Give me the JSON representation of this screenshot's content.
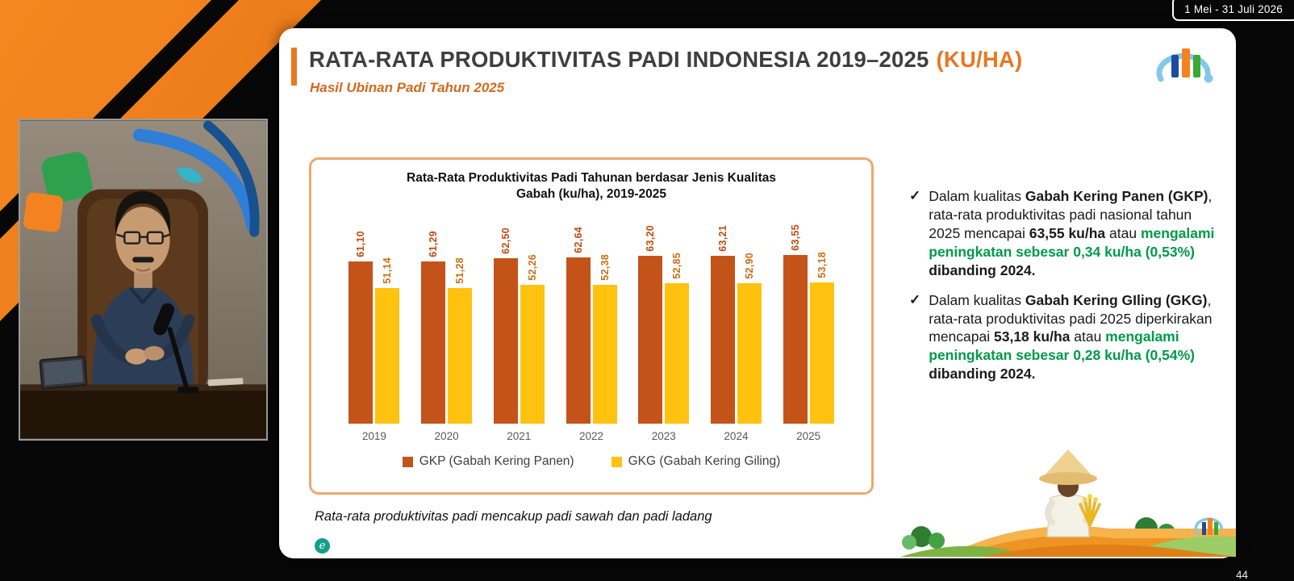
{
  "header": {
    "date_range": "1 Mei - 31 Juli 2026",
    "page_number": "44"
  },
  "slide": {
    "title": "RATA-RATA PRODUKTIVITAS PADI INDONESIA 2019–2025",
    "title_accent": "(KU/HA)",
    "subtitle": "Hasil Ubinan Padi Tahun 2025",
    "footnote": "Rata-rata produktivitas padi mencakup padi sawah dan padi ladang",
    "watermark_glyph": "e",
    "accent_color": "#E87722"
  },
  "chart_data": {
    "type": "bar",
    "title": "Rata-Rata Produktivitas Padi Tahunan berdasar Jenis Kualitas Gabah (ku/ha), 2019-2025",
    "categories": [
      "2019",
      "2020",
      "2021",
      "2022",
      "2023",
      "2024",
      "2025"
    ],
    "series": [
      {
        "name": "GKP (Gabah Kering Panen)",
        "color": "#C4531A",
        "label_color": "#BE4B12",
        "values": [
          61.1,
          61.29,
          62.5,
          62.64,
          63.2,
          63.21,
          63.55
        ],
        "labels": [
          "61,10",
          "61,29",
          "62,50",
          "62,64",
          "63,20",
          "63,21",
          "63,55"
        ]
      },
      {
        "name": "GKG (Gabah Kering Giling)",
        "color": "#FFC20E",
        "label_color": "#C96F15",
        "values": [
          51.14,
          51.28,
          52.26,
          52.38,
          52.85,
          52.9,
          53.18
        ],
        "labels": [
          "51,14",
          "51,28",
          "52,26",
          "52,38",
          "52,85",
          "52,90",
          "53,18"
        ]
      }
    ],
    "ylim": [
      0,
      70
    ],
    "grid": false,
    "legend_position": "bottom",
    "value_labels": "rotated-90"
  },
  "insights": {
    "green_color": "#009A49",
    "check_glyph": "✓",
    "bullets": [
      {
        "segments": [
          {
            "text": "Dalam kualitas "
          },
          {
            "text": "Gabah Kering Panen (GKP)",
            "bold": true
          },
          {
            "text": ", rata-rata produktivitas padi nasional tahun 2025 mencapai "
          },
          {
            "text": "63,55 ku/ha",
            "bold": true
          },
          {
            "text": " atau "
          },
          {
            "text": "mengalami peningkatan sebesar 0,34 ku/ha (0,53%)",
            "bold": true,
            "green": true
          },
          {
            "text": " dibanding 2024.",
            "bold": true
          }
        ]
      },
      {
        "segments": [
          {
            "text": "Dalam kualitas "
          },
          {
            "text": "Gabah Kering GIling (GKG)",
            "bold": true
          },
          {
            "text": ", rata-rata produktivitas padi 2025 diperkirakan mencapai "
          },
          {
            "text": "53,18 ku/ha",
            "bold": true
          },
          {
            "text": " atau "
          },
          {
            "text": "mengalami peningkatan sebesar 0,28 ku/ha (0,54%)",
            "bold": true,
            "green": true
          },
          {
            "text": " dibanding 2024.",
            "bold": true
          }
        ]
      }
    ]
  }
}
